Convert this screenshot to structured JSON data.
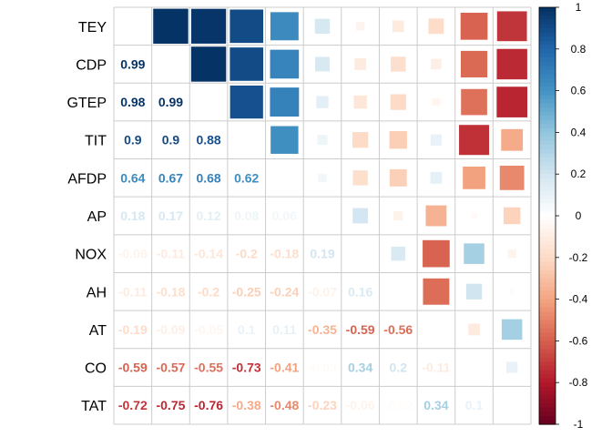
{
  "chart_data": {
    "type": "heatmap",
    "variables": [
      "TEY",
      "CDP",
      "GTEP",
      "TIT",
      "AFDP",
      "AP",
      "NOX",
      "AH",
      "AT",
      "CO",
      "TAT"
    ],
    "lower_values": [
      [],
      [
        0.99
      ],
      [
        0.98,
        0.99
      ],
      [
        0.9,
        0.9,
        0.88
      ],
      [
        0.64,
        0.67,
        0.68,
        0.62
      ],
      [
        0.18,
        0.17,
        0.12,
        0.08,
        0.06
      ],
      [
        -0.06,
        -0.11,
        -0.14,
        -0.2,
        -0.18,
        0.19
      ],
      [
        -0.11,
        -0.18,
        -0.2,
        -0.25,
        -0.24,
        -0.07,
        0.16
      ],
      [
        -0.19,
        -0.09,
        -0.05,
        0.1,
        0.11,
        -0.35,
        -0.59,
        -0.56
      ],
      [
        -0.59,
        -0.57,
        -0.55,
        -0.73,
        -0.41,
        -0.03,
        0.34,
        0.2,
        -0.11
      ],
      [
        -0.72,
        -0.75,
        -0.76,
        -0.38,
        -0.48,
        -0.23,
        -0.06,
        -0.02,
        0.34,
        0.1
      ]
    ],
    "upper_values": [
      [
        null,
        0.99,
        0.98,
        0.9,
        0.64,
        0.18,
        -0.06,
        -0.11,
        -0.19,
        -0.59,
        -0.72
      ],
      [
        null,
        null,
        0.99,
        0.9,
        0.67,
        0.17,
        -0.11,
        -0.18,
        -0.09,
        -0.57,
        -0.75
      ],
      [
        null,
        null,
        null,
        0.88,
        0.68,
        0.12,
        -0.14,
        -0.2,
        -0.05,
        -0.55,
        -0.76
      ],
      [
        null,
        null,
        null,
        null,
        0.62,
        0.08,
        -0.2,
        -0.25,
        0.1,
        -0.73,
        -0.38
      ],
      [
        null,
        null,
        null,
        null,
        null,
        0.06,
        -0.18,
        -0.24,
        0.11,
        -0.41,
        -0.48
      ],
      [
        null,
        null,
        null,
        null,
        null,
        null,
        0.19,
        -0.07,
        -0.35,
        -0.03,
        -0.23
      ],
      [
        null,
        null,
        null,
        null,
        null,
        null,
        null,
        0.16,
        -0.59,
        0.34,
        -0.06
      ],
      [
        null,
        null,
        null,
        null,
        null,
        null,
        null,
        null,
        -0.56,
        0.2,
        -0.02
      ],
      [
        null,
        null,
        null,
        null,
        null,
        null,
        null,
        null,
        null,
        -0.11,
        0.34
      ],
      [
        null,
        null,
        null,
        null,
        null,
        null,
        null,
        null,
        null,
        null,
        0.1
      ],
      [
        null,
        null,
        null,
        null,
        null,
        null,
        null,
        null,
        null,
        null,
        null
      ]
    ],
    "value_labels": [
      [],
      [
        "0.99"
      ],
      [
        "0.98",
        "0.99"
      ],
      [
        "0.9",
        "0.9",
        "0.88"
      ],
      [
        "0.64",
        "0.67",
        "0.68",
        "0.62"
      ],
      [
        "0.18",
        "0.17",
        "0.12",
        "0.08",
        "0.06"
      ],
      [
        "-0.06",
        "-0.11",
        "-0.14",
        "-0.2",
        "-0.18",
        "0.19"
      ],
      [
        "-0.11",
        "-0.18",
        "-0.2",
        "-0.25",
        "-0.24",
        "-0.07",
        "0.16"
      ],
      [
        "-0.19",
        "-0.09",
        "-0.05",
        "0.1",
        "0.11",
        "-0.35",
        "-0.59",
        "-0.56"
      ],
      [
        "-0.59",
        "-0.57",
        "-0.55",
        "-0.73",
        "-0.41",
        "-0.03",
        "0.34",
        "0.2",
        "-0.11"
      ],
      [
        "-0.72",
        "-0.75",
        "-0.76",
        "-0.38",
        "-0.48",
        "-0.23",
        "-0.06",
        "-0.02",
        "0.34",
        "0.1"
      ]
    ],
    "lower_style": "number",
    "upper_style": "square",
    "colorbar": {
      "range": [
        -1,
        1
      ],
      "ticks": [
        1,
        0.8,
        0.6,
        0.4,
        0.2,
        0,
        -0.2,
        -0.4,
        -0.6,
        -0.8,
        -1
      ],
      "tick_labels": [
        "1",
        "0.8",
        "0.6",
        "0.4",
        "0.2",
        "0",
        "-0.2",
        "-0.4",
        "-0.6",
        "-0.8",
        "-1"
      ]
    },
    "colors": {
      "strong_positive": "#053061",
      "positive": "#2166ac",
      "mid_positive": "#4393c3",
      "light_positive": "#92c5de",
      "pale_positive": "#d1e5f0",
      "neutral": "#ffffff",
      "pale_negative": "#fddbc7",
      "light_negative": "#f4a582",
      "mid_negative": "#d6604d",
      "negative": "#b2182b",
      "strong_negative": "#67001f",
      "grid": "#cccccc"
    },
    "grid": true,
    "legend": "right",
    "title": "",
    "xlabel": "",
    "ylabel": ""
  }
}
